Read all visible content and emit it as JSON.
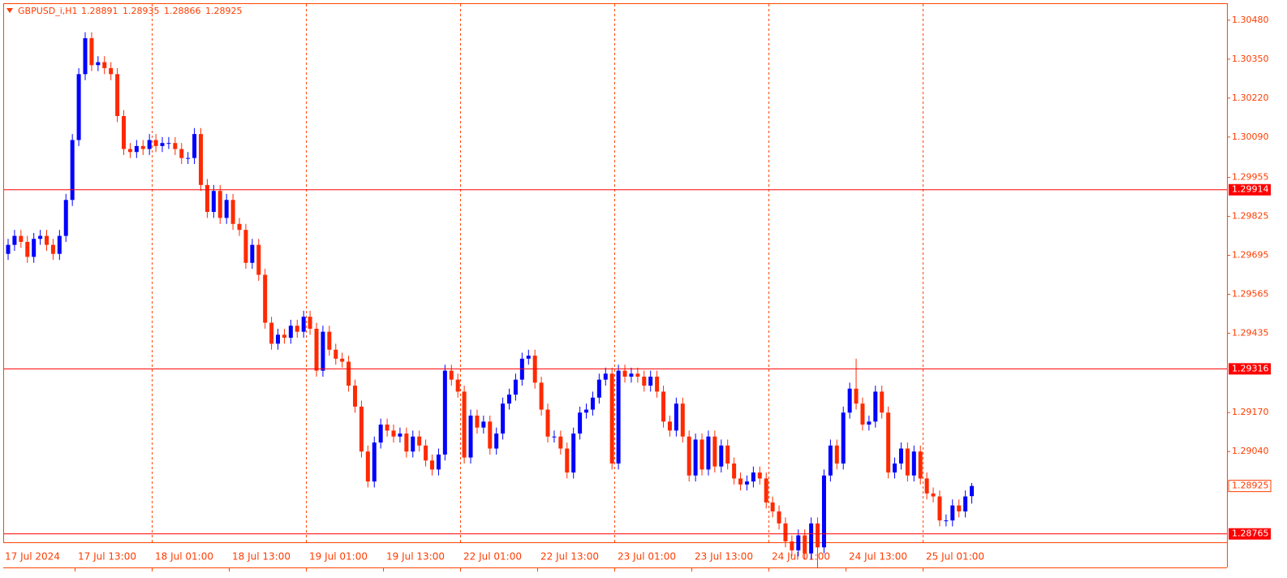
{
  "header": {
    "symbol": "GBPUSD_i,H1"
  },
  "chart_data": {
    "type": "candlestick",
    "ohlc": [
      [
        1.297,
        1.2975,
        1.2968,
        1.2973
      ],
      [
        1.2973,
        1.2978,
        1.2971,
        1.2976
      ],
      [
        1.2976,
        1.2978,
        1.2972,
        1.2974
      ],
      [
        1.2974,
        1.2976,
        1.2967,
        1.2969
      ],
      [
        1.2969,
        1.2977,
        1.2967,
        1.2975
      ],
      [
        1.2975,
        1.2978,
        1.2973,
        1.2976
      ],
      [
        1.2976,
        1.2978,
        1.2971,
        1.2973
      ],
      [
        1.2973,
        1.2975,
        1.2968,
        1.297
      ],
      [
        1.297,
        1.2978,
        1.2968,
        1.2976
      ],
      [
        1.2976,
        1.299,
        1.2974,
        1.2988
      ],
      [
        1.2988,
        1.301,
        1.2986,
        1.3008
      ],
      [
        1.3008,
        1.3032,
        1.3006,
        1.303
      ],
      [
        1.303,
        1.3044,
        1.3028,
        1.3042
      ],
      [
        1.3042,
        1.3044,
        1.3031,
        1.3033
      ],
      [
        1.3033,
        1.3036,
        1.3031,
        1.3034
      ],
      [
        1.3034,
        1.3036,
        1.303,
        1.3032
      ],
      [
        1.3032,
        1.3034,
        1.3028,
        1.303
      ],
      [
        1.303,
        1.3032,
        1.3014,
        1.3016
      ],
      [
        1.3016,
        1.3018,
        1.3003,
        1.3005
      ],
      [
        1.3005,
        1.3007,
        1.3002,
        1.3004
      ],
      [
        1.3004,
        1.3008,
        1.3002,
        1.3006
      ],
      [
        1.3006,
        1.3008,
        1.3003,
        1.3005
      ],
      [
        1.3005,
        1.301,
        1.3003,
        1.3008
      ],
      [
        1.3008,
        1.301,
        1.3004,
        1.3006
      ],
      [
        1.3006,
        1.3009,
        1.3004,
        1.3007
      ],
      [
        1.3007,
        1.3009,
        1.3005,
        1.3007
      ],
      [
        1.3007,
        1.3009,
        1.3003,
        1.3005
      ],
      [
        1.3005,
        1.3007,
        1.3,
        1.3002
      ],
      [
        1.3002,
        1.3004,
        1.3,
        1.3002
      ],
      [
        1.3002,
        1.3012,
        1.3,
        1.301
      ],
      [
        1.301,
        1.3012,
        1.2991,
        1.2993
      ],
      [
        1.2993,
        1.2995,
        1.2982,
        1.2984
      ],
      [
        1.2984,
        1.2993,
        1.2982,
        1.2991
      ],
      [
        1.2991,
        1.2993,
        1.298,
        1.2982
      ],
      [
        1.2982,
        1.299,
        1.298,
        1.2988
      ],
      [
        1.2988,
        1.299,
        1.2978,
        1.298
      ],
      [
        1.298,
        1.2982,
        1.2976,
        1.2978
      ],
      [
        1.2978,
        1.298,
        1.2965,
        1.2967
      ],
      [
        1.2967,
        1.2975,
        1.2965,
        1.2973
      ],
      [
        1.2973,
        1.2975,
        1.2961,
        1.2963
      ],
      [
        1.2963,
        1.2965,
        1.2945,
        1.2947
      ],
      [
        1.2947,
        1.2949,
        1.2938,
        1.294
      ],
      [
        1.294,
        1.2945,
        1.2938,
        1.2943
      ],
      [
        1.2943,
        1.2945,
        1.294,
        1.2942
      ],
      [
        1.2942,
        1.2948,
        1.294,
        1.2946
      ],
      [
        1.2946,
        1.2948,
        1.2942,
        1.2944
      ],
      [
        1.2944,
        1.2951,
        1.2942,
        1.2949
      ],
      [
        1.2949,
        1.2951,
        1.2943,
        1.2945
      ],
      [
        1.2945,
        1.2947,
        1.2929,
        1.2931
      ],
      [
        1.2931,
        1.2946,
        1.2929,
        1.2944
      ],
      [
        1.2944,
        1.2946,
        1.2936,
        1.2938
      ],
      [
        1.2938,
        1.294,
        1.2933,
        1.2935
      ],
      [
        1.2935,
        1.2937,
        1.2932,
        1.2934
      ],
      [
        1.2934,
        1.2936,
        1.2924,
        1.2926
      ],
      [
        1.2926,
        1.2928,
        1.2917,
        1.2919
      ],
      [
        1.2919,
        1.2921,
        1.2902,
        1.2904
      ],
      [
        1.2904,
        1.2906,
        1.2892,
        1.2894
      ],
      [
        1.2894,
        1.2909,
        1.2892,
        1.2907
      ],
      [
        1.2907,
        1.2915,
        1.2905,
        1.2913
      ],
      [
        1.2913,
        1.2915,
        1.2909,
        1.2911
      ],
      [
        1.2911,
        1.2913,
        1.2907,
        1.2909
      ],
      [
        1.2909,
        1.2912,
        1.2907,
        1.291
      ],
      [
        1.291,
        1.2912,
        1.2902,
        1.2904
      ],
      [
        1.2904,
        1.2911,
        1.2902,
        1.2909
      ],
      [
        1.2909,
        1.2911,
        1.2904,
        1.2906
      ],
      [
        1.2906,
        1.2908,
        1.2899,
        1.2901
      ],
      [
        1.2901,
        1.2903,
        1.2896,
        1.2898
      ],
      [
        1.2898,
        1.2905,
        1.2896,
        1.2903
      ],
      [
        1.2903,
        1.2933,
        1.2901,
        1.2931
      ],
      [
        1.2931,
        1.2933,
        1.2926,
        1.2928
      ],
      [
        1.2928,
        1.293,
        1.2922,
        1.2924
      ],
      [
        1.2924,
        1.2926,
        1.29,
        1.2902
      ],
      [
        1.2902,
        1.2918,
        1.29,
        1.2916
      ],
      [
        1.2916,
        1.2918,
        1.291,
        1.2912
      ],
      [
        1.2912,
        1.2916,
        1.291,
        1.2914
      ],
      [
        1.2914,
        1.2916,
        1.2903,
        1.2905
      ],
      [
        1.2905,
        1.2912,
        1.2903,
        1.291
      ],
      [
        1.291,
        1.2922,
        1.2908,
        1.292
      ],
      [
        1.292,
        1.2925,
        1.2918,
        1.2923
      ],
      [
        1.2923,
        1.293,
        1.2921,
        1.2928
      ],
      [
        1.2928,
        1.2937,
        1.2926,
        1.2935
      ],
      [
        1.2935,
        1.2938,
        1.2933,
        1.2936
      ],
      [
        1.2936,
        1.2938,
        1.2925,
        1.2927
      ],
      [
        1.2927,
        1.2929,
        1.2916,
        1.2918
      ],
      [
        1.2918,
        1.292,
        1.2907,
        1.2909
      ],
      [
        1.2909,
        1.2911,
        1.2907,
        1.2909
      ],
      [
        1.2909,
        1.2911,
        1.2903,
        1.2905
      ],
      [
        1.2905,
        1.2907,
        1.2895,
        1.2897
      ],
      [
        1.2897,
        1.2912,
        1.2895,
        1.291
      ],
      [
        1.291,
        1.2919,
        1.2908,
        1.2917
      ],
      [
        1.2917,
        1.292,
        1.2915,
        1.2918
      ],
      [
        1.2918,
        1.2924,
        1.2916,
        1.2922
      ],
      [
        1.2922,
        1.293,
        1.292,
        1.2928
      ],
      [
        1.2928,
        1.2932,
        1.2926,
        1.293
      ],
      [
        1.293,
        1.2932,
        1.2898,
        1.29
      ],
      [
        1.29,
        1.2933,
        1.2898,
        1.2931
      ],
      [
        1.2931,
        1.2933,
        1.2927,
        1.2929
      ],
      [
        1.2929,
        1.2932,
        1.2927,
        1.293
      ],
      [
        1.293,
        1.2932,
        1.2927,
        1.2929
      ],
      [
        1.2929,
        1.2931,
        1.2924,
        1.2926
      ],
      [
        1.2926,
        1.2931,
        1.2924,
        1.2929
      ],
      [
        1.2929,
        1.2931,
        1.2922,
        1.2924
      ],
      [
        1.2924,
        1.2926,
        1.2912,
        1.2914
      ],
      [
        1.2914,
        1.2916,
        1.2909,
        1.2911
      ],
      [
        1.2911,
        1.2922,
        1.2909,
        1.292
      ],
      [
        1.292,
        1.2922,
        1.2907,
        1.2909
      ],
      [
        1.2909,
        1.2911,
        1.2894,
        1.2896
      ],
      [
        1.2896,
        1.291,
        1.2894,
        1.2908
      ],
      [
        1.2908,
        1.291,
        1.2896,
        1.2898
      ],
      [
        1.2898,
        1.2911,
        1.2896,
        1.2909
      ],
      [
        1.2909,
        1.2911,
        1.2897,
        1.2899
      ],
      [
        1.2899,
        1.2908,
        1.2897,
        1.2906
      ],
      [
        1.2906,
        1.2908,
        1.2898,
        1.29
      ],
      [
        1.29,
        1.2902,
        1.2893,
        1.2895
      ],
      [
        1.2895,
        1.2897,
        1.2891,
        1.2893
      ],
      [
        1.2893,
        1.2896,
        1.2891,
        1.2894
      ],
      [
        1.2894,
        1.2899,
        1.2892,
        1.2897
      ],
      [
        1.2897,
        1.2899,
        1.2893,
        1.2895
      ],
      [
        1.2895,
        1.2897,
        1.2885,
        1.2887
      ],
      [
        1.2887,
        1.2889,
        1.2882,
        1.2884
      ],
      [
        1.2884,
        1.2886,
        1.2878,
        1.288
      ],
      [
        1.288,
        1.2882,
        1.2872,
        1.2874
      ],
      [
        1.2874,
        1.2876,
        1.2869,
        1.2871
      ],
      [
        1.2871,
        1.2878,
        1.2869,
        1.2876
      ],
      [
        1.2876,
        1.2878,
        1.2868,
        1.287
      ],
      [
        1.287,
        1.2882,
        1.2868,
        1.288
      ],
      [
        1.288,
        1.2882,
        1.2865,
        1.2872
      ],
      [
        1.2872,
        1.2898,
        1.287,
        1.2896
      ],
      [
        1.2896,
        1.2908,
        1.2894,
        1.2906
      ],
      [
        1.2906,
        1.2908,
        1.2898,
        1.29
      ],
      [
        1.29,
        1.2919,
        1.2898,
        1.2917
      ],
      [
        1.2917,
        1.2927,
        1.2915,
        1.2925
      ],
      [
        1.2925,
        1.2935,
        1.2918,
        1.292
      ],
      [
        1.292,
        1.2922,
        1.2911,
        1.2913
      ],
      [
        1.2913,
        1.2916,
        1.2911,
        1.2914
      ],
      [
        1.2914,
        1.2926,
        1.2912,
        1.2924
      ],
      [
        1.2924,
        1.2926,
        1.2915,
        1.2917
      ],
      [
        1.2917,
        1.2919,
        1.2895,
        1.2897
      ],
      [
        1.2897,
        1.2902,
        1.2895,
        1.29
      ],
      [
        1.29,
        1.2907,
        1.2898,
        1.2905
      ],
      [
        1.2905,
        1.2907,
        1.2894,
        1.2896
      ],
      [
        1.2896,
        1.2906,
        1.2894,
        1.2904
      ],
      [
        1.2904,
        1.2906,
        1.2893,
        1.2895
      ],
      [
        1.2895,
        1.2897,
        1.2888,
        1.289
      ],
      [
        1.289,
        1.2892,
        1.2887,
        1.2889
      ],
      [
        1.2889,
        1.2891,
        1.2879,
        1.2881
      ],
      [
        1.2881,
        1.2883,
        1.2879,
        1.2881
      ],
      [
        1.2881,
        1.2888,
        1.2879,
        1.2886
      ],
      [
        1.2886,
        1.2888,
        1.2882,
        1.2884
      ],
      [
        1.2884,
        1.2891,
        1.2882,
        1.2889
      ],
      [
        1.28891,
        1.28935,
        1.28866,
        1.28925
      ]
    ],
    "ylim": [
      1.28737,
      1.30534
    ],
    "yticks": [
      {
        "value": 1.3048,
        "label": "1.30480"
      },
      {
        "value": 1.3035,
        "label": "1.30350"
      },
      {
        "value": 1.3022,
        "label": "1.30220"
      },
      {
        "value": 1.3009,
        "label": "1.30090"
      },
      1.29955,
      1.29825,
      1.29695,
      1.29565,
      1.29435,
      {
        "value": 1.2917,
        "label": "1.29170"
      },
      {
        "value": 1.2904,
        "label": "1.29040"
      }
    ],
    "xticks": [
      {
        "value": 0,
        "label": "17 Jul 2024"
      },
      {
        "value": 12,
        "label": "17 Jul 13:00"
      },
      {
        "value": 24,
        "label": "18 Jul 01:00"
      },
      {
        "value": 36,
        "label": "18 Jul 13:00"
      },
      {
        "value": 48,
        "label": "19 Jul 01:00"
      },
      {
        "value": 60,
        "label": "19 Jul 13:00"
      },
      {
        "value": 72,
        "label": "22 Jul 01:00"
      },
      {
        "value": 84,
        "label": "22 Jul 13:00"
      },
      {
        "value": 96,
        "label": "23 Jul 01:00"
      },
      {
        "value": 108,
        "label": "23 Jul 13:00"
      },
      {
        "value": 120,
        "label": "24 Jul 01:00"
      },
      {
        "value": 132,
        "label": "24 Jul 13:00"
      },
      {
        "value": 144,
        "label": "25 Jul 01:00"
      }
    ],
    "hlines": [
      1.29914,
      1.29316,
      1.28765
    ],
    "colors": {
      "up": "#0000ff",
      "down": "#ff2a00",
      "grid": "#ff4500"
    },
    "grid": true
  }
}
